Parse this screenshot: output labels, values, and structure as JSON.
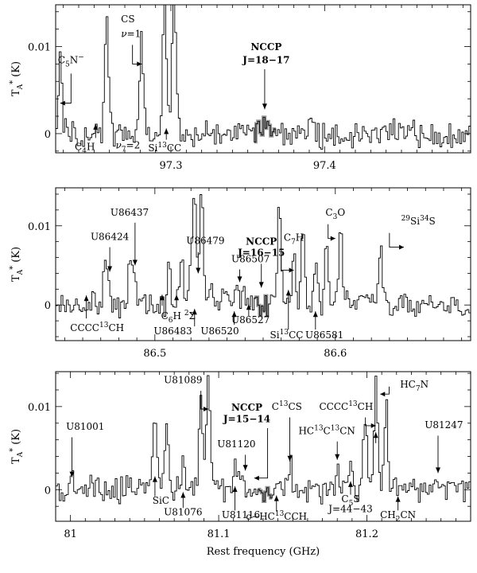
{
  "chart_data": [
    {
      "type": "line",
      "title": "",
      "xlabel": "",
      "ylabel": "T_A* (K)",
      "xlim": [
        97.225,
        97.495
      ],
      "ylim": [
        -0.0022,
        0.0148
      ],
      "xticks_major": [
        97.3,
        97.4
      ],
      "xticks_major_labels": [
        "97.3",
        "97.4"
      ],
      "yticks_major": [
        0,
        0.01
      ],
      "yticks_major_labels": [
        "0",
        "0.01"
      ],
      "features": [
        {
          "x": 97.228,
          "peak": 0.0085
        },
        {
          "x": 97.258,
          "peak": 0.0135
        },
        {
          "x": 97.281,
          "peak": 0.0115
        },
        {
          "x": 97.296,
          "peak": 0.016
        },
        {
          "x": 97.302,
          "peak": 0.016
        },
        {
          "x": 97.361,
          "peak": 0.0022
        },
        {
          "x": 97.392,
          "peak": 0.0022
        }
      ],
      "highlight_segments": [
        {
          "x0": 97.354,
          "x1": 97.368
        }
      ],
      "labels": [
        {
          "text": "C5N⁻",
          "fs": [
            {
              "t": "C"
            },
            {
              "t": "5",
              "s": "sub"
            },
            {
              "t": "N"
            },
            {
              "t": "−",
              "s": "sup"
            }
          ],
          "x": 97.235,
          "y": 0.0081
        },
        {
          "text": "CS",
          "fs": [
            {
              "t": "CS"
            }
          ],
          "x": 97.272,
          "y": 0.0128
        },
        {
          "text": "ν=1",
          "fs": [
            {
              "t": "ν",
              "s": "it"
            },
            {
              "t": "=1"
            }
          ],
          "x": 97.274,
          "y": 0.0111
        },
        {
          "text": "NCCP",
          "fs": [
            {
              "t": "NCCP"
            }
          ],
          "x": 97.362,
          "y": 0.0096,
          "bold": true
        },
        {
          "text": "J=18−17",
          "fs": [
            {
              "t": "J=18−17"
            }
          ],
          "x": 97.362,
          "y": 0.0081,
          "bold": true
        },
        {
          "text": "C4H",
          "fs": [
            {
              "t": "C"
            },
            {
              "t": "4",
              "s": "sub"
            },
            {
              "t": "H"
            }
          ],
          "x": 97.244,
          "y": -0.0019
        },
        {
          "text": "ν7=2",
          "fs": [
            {
              "t": "ν",
              "s": "it"
            },
            {
              "t": "7",
              "s": "sub"
            },
            {
              "t": "=2"
            }
          ],
          "x": 97.272,
          "y": -0.0017
        },
        {
          "text": "Si13CC",
          "fs": [
            {
              "t": "Si"
            },
            {
              "t": "13",
              "s": "sup"
            },
            {
              "t": "CC"
            }
          ],
          "x": 97.296,
          "y": -0.002
        }
      ],
      "arrows": [
        {
          "x": 97.235,
          "y0": 0.0069,
          "y1": 0.0035,
          "kink_x": 97.228
        },
        {
          "x": 97.275,
          "y0": 0.0102,
          "y1": 0.008,
          "kink_x": 97.281
        },
        {
          "x": 97.361,
          "y0": 0.0074,
          "y1": 0.0028
        },
        {
          "x": 97.251,
          "y0": -0.0005,
          "y1": 0.0011
        },
        {
          "x": 97.297,
          "y0": -0.0007,
          "y1": 0.0006
        }
      ]
    },
    {
      "type": "line",
      "title": "",
      "xlabel": "",
      "ylabel": "T_A* (K)",
      "xlim": [
        86.445,
        86.675
      ],
      "ylim": [
        -0.0045,
        0.0148
      ],
      "xticks_major": [
        86.5,
        86.6
      ],
      "xticks_major_labels": [
        "86.5",
        "86.6"
      ],
      "yticks_major": [
        0,
        0.01
      ],
      "yticks_major_labels": [
        "0",
        "0.01"
      ],
      "features": [
        {
          "x": 86.474,
          "peak": 0.0042
        },
        {
          "x": 86.488,
          "peak": 0.005
        },
        {
          "x": 86.472,
          "peak": 0.004
        },
        {
          "x": 86.486,
          "peak": 0.0045
        },
        {
          "x": 86.508,
          "peak": 0.0045
        },
        {
          "x": 86.515,
          "peak": 0.0065
        },
        {
          "x": 86.52,
          "peak": 0.0055
        },
        {
          "x": 86.522,
          "peak": 0.0135
        },
        {
          "x": 86.526,
          "peak": 0.0145
        },
        {
          "x": 86.531,
          "peak": 0.0025
        },
        {
          "x": 86.539,
          "peak": 0.0025
        },
        {
          "x": 86.545,
          "peak": 0.0015
        },
        {
          "x": 86.55,
          "peak": 0.0015
        },
        {
          "x": 86.556,
          "peak": 0.0015
        },
        {
          "x": 86.569,
          "peak": 0.0125
        },
        {
          "x": 86.577,
          "peak": 0.0065
        },
        {
          "x": 86.582,
          "peak": 0.0085
        },
        {
          "x": 86.589,
          "peak": 0.0055
        },
        {
          "x": 86.595,
          "peak": 0.0085
        },
        {
          "x": 86.603,
          "peak": 0.01
        },
        {
          "x": 86.625,
          "peak": 0.007
        }
      ],
      "highlight_segments": [
        {
          "x0": 86.555,
          "x1": 86.563
        }
      ],
      "labels": [
        {
          "text": "U86437",
          "fs": [
            {
              "t": "U86437"
            }
          ],
          "x": 86.486,
          "y": 0.0113
        },
        {
          "text": "U86424",
          "fs": [
            {
              "t": "U86424"
            }
          ],
          "x": 86.475,
          "y": 0.0082
        },
        {
          "text": "U86479",
          "fs": [
            {
              "t": "U86479"
            }
          ],
          "x": 86.528,
          "y": 0.0077
        },
        {
          "text": "U86507",
          "fs": [
            {
              "t": "U86507"
            }
          ],
          "x": 86.553,
          "y": 0.0054
        },
        {
          "text": "NCCP",
          "fs": [
            {
              "t": "NCCP"
            }
          ],
          "x": 86.559,
          "y": 0.0076,
          "bold": true
        },
        {
          "text": "J=16−15",
          "fs": [
            {
              "t": "J=16−15"
            }
          ],
          "x": 86.559,
          "y": 0.0062,
          "bold": true
        },
        {
          "text": "C7H",
          "fs": [
            {
              "t": "C"
            },
            {
              "t": "7",
              "s": "sub"
            },
            {
              "t": "H"
            }
          ],
          "x": 86.577,
          "y": 0.0081
        },
        {
          "text": "C3O",
          "fs": [
            {
              "t": "C"
            },
            {
              "t": "3",
              "s": "sub"
            },
            {
              "t": "O"
            }
          ],
          "x": 86.6,
          "y": 0.0113
        },
        {
          "text": "29Si34S",
          "fs": [
            {
              "t": "29",
              "s": "sup"
            },
            {
              "t": "Si"
            },
            {
              "t": "34",
              "s": "sup"
            },
            {
              "t": "S"
            }
          ],
          "x": 86.646,
          "y": 0.0102
        },
        {
          "text": "CCCC13CH",
          "fs": [
            {
              "t": "CCCC"
            },
            {
              "t": "13",
              "s": "sup"
            },
            {
              "t": "CH"
            }
          ],
          "x": 86.468,
          "y": -0.0033
        },
        {
          "text": "C6H 2Σ",
          "fs": [
            {
              "t": "C"
            },
            {
              "t": "6",
              "s": "sub"
            },
            {
              "t": "H  "
            },
            {
              "t": "2",
              "s": "sup"
            },
            {
              "t": "Σ"
            }
          ],
          "x": 86.513,
          "y": -0.0018
        },
        {
          "text": "U86483",
          "fs": [
            {
              "t": "U86483"
            }
          ],
          "x": 86.51,
          "y": -0.0037
        },
        {
          "text": "U86520",
          "fs": [
            {
              "t": "U86520"
            }
          ],
          "x": 86.536,
          "y": -0.0037
        },
        {
          "text": "U86527",
          "fs": [
            {
              "t": "U86527"
            }
          ],
          "x": 86.553,
          "y": -0.0023
        },
        {
          "text": "Si13CC",
          "fs": [
            {
              "t": "Si"
            },
            {
              "t": "13",
              "s": "sup"
            },
            {
              "t": "CC"
            }
          ],
          "x": 86.573,
          "y": -0.0042
        },
        {
          "text": "U86581",
          "fs": [
            {
              "t": "U86581"
            }
          ],
          "x": 86.594,
          "y": -0.0042
        }
      ],
      "arrows": [
        {
          "x": 86.489,
          "y0": 0.0104,
          "y1": 0.005
        },
        {
          "x": 86.475,
          "y0": 0.0073,
          "y1": 0.0042
        },
        {
          "x": 86.524,
          "y0": 0.0067,
          "y1": 0.004
        },
        {
          "x": 86.547,
          "y0": 0.0045,
          "y1": 0.0029
        },
        {
          "x": 86.559,
          "y0": 0.0052,
          "y1": 0.0022
        },
        {
          "x": 86.57,
          "y0": 0.0067,
          "y1": 0.0044,
          "kink_x": 86.577
        },
        {
          "x": 86.596,
          "y0": 0.0102,
          "y1": 0.0084,
          "kink_x": 86.6
        },
        {
          "x": 86.63,
          "y0": 0.0091,
          "y1": 0.0073,
          "kink_x": 86.638
        },
        {
          "x": 86.462,
          "y0": -0.0017,
          "y1": 0.0012
        },
        {
          "x": 86.504,
          "y0": -0.0001,
          "y1": 0.0013
        },
        {
          "x": 86.512,
          "y0": -0.0001,
          "y1": 0.0013
        },
        {
          "x": 86.522,
          "y0": -0.0027,
          "y1": -0.0005
        },
        {
          "x": 86.544,
          "y0": -0.0025,
          "y1": -0.0008
        },
        {
          "x": 86.552,
          "y0": -0.0014,
          "y1": 0.0001
        },
        {
          "x": 86.574,
          "y0": -0.0031,
          "y1": 0.0019
        },
        {
          "x": 86.589,
          "y0": -0.0031,
          "y1": -0.0008
        }
      ]
    },
    {
      "type": "line",
      "title": "",
      "xlabel": "Rest frequency (GHz)",
      "ylabel": "T_A* (K)",
      "xlim": [
        80.99,
        81.27
      ],
      "ylim": [
        -0.0038,
        0.0142
      ],
      "xticks_major": [
        81,
        81.1,
        81.2
      ],
      "xticks_major_labels": [
        "81",
        "81.1",
        "81.2"
      ],
      "yticks_major": [
        0,
        0.01
      ],
      "yticks_major_labels": [
        "0",
        "0.01"
      ],
      "features": [
        {
          "x": 81.001,
          "peak": 0.0013
        },
        {
          "x": 81.057,
          "peak": 0.0093
        },
        {
          "x": 81.065,
          "peak": 0.0085
        },
        {
          "x": 81.076,
          "peak": 0.003
        },
        {
          "x": 81.088,
          "peak": 0.0125
        },
        {
          "x": 81.093,
          "peak": 0.0125
        },
        {
          "x": 81.111,
          "peak": 0.0022
        },
        {
          "x": 81.116,
          "peak": 0.0028
        },
        {
          "x": 81.148,
          "peak": 0.0032
        },
        {
          "x": 81.18,
          "peak": 0.0035
        },
        {
          "x": 81.189,
          "peak": 0.003
        },
        {
          "x": 81.199,
          "peak": 0.009
        },
        {
          "x": 81.206,
          "peak": 0.012
        },
        {
          "x": 81.213,
          "peak": 0.0105
        },
        {
          "x": 81.248,
          "peak": 0.0018
        }
      ],
      "highlight_segments": [
        {
          "x0": 81.126,
          "x1": 81.136
        }
      ],
      "labels": [
        {
          "text": "U81089",
          "fs": [
            {
              "t": "U81089"
            }
          ],
          "x": 81.076,
          "y": 0.0128
        },
        {
          "text": "U81001",
          "fs": [
            {
              "t": "U81001"
            }
          ],
          "x": 81.01,
          "y": 0.0072
        },
        {
          "text": "NCCP",
          "fs": [
            {
              "t": "NCCP"
            }
          ],
          "x": 81.119,
          "y": 0.0095,
          "bold": true
        },
        {
          "text": "J=15−14",
          "fs": [
            {
              "t": "J=15−14"
            }
          ],
          "x": 81.119,
          "y": 0.0081,
          "bold": true
        },
        {
          "text": "C13CS",
          "fs": [
            {
              "t": "C"
            },
            {
              "t": "13",
              "s": "sup"
            },
            {
              "t": "CS"
            }
          ],
          "x": 81.146,
          "y": 0.0096
        },
        {
          "text": "U81120",
          "fs": [
            {
              "t": "U81120"
            }
          ],
          "x": 81.112,
          "y": 0.0051
        },
        {
          "text": "CCCC13CH",
          "fs": [
            {
              "t": "CCCC"
            },
            {
              "t": "13",
              "s": "sup"
            },
            {
              "t": "CH"
            }
          ],
          "x": 81.186,
          "y": 0.0096
        },
        {
          "text": "HC7N",
          "fs": [
            {
              "t": "HC"
            },
            {
              "t": "7",
              "s": "sub"
            },
            {
              "t": "N"
            }
          ],
          "x": 81.232,
          "y": 0.0123
        },
        {
          "text": "HC13C13CN",
          "fs": [
            {
              "t": "HC"
            },
            {
              "t": "13",
              "s": "sup"
            },
            {
              "t": "C"
            },
            {
              "t": "13",
              "s": "sup"
            },
            {
              "t": "CN"
            }
          ],
          "x": 81.173,
          "y": 0.0067
        },
        {
          "text": "U81247",
          "fs": [
            {
              "t": "U81247"
            }
          ],
          "x": 81.252,
          "y": 0.0074
        },
        {
          "text": "SiC",
          "fs": [
            {
              "t": "SiC"
            }
          ],
          "x": 81.061,
          "y": -0.0017
        },
        {
          "text": "U81076",
          "fs": [
            {
              "t": "U81076"
            }
          ],
          "x": 81.076,
          "y": -0.0031
        },
        {
          "text": "U81116",
          "fs": [
            {
              "t": "U81116"
            }
          ],
          "x": 81.115,
          "y": -0.0034
        },
        {
          "text": "c−HC13CCH",
          "fs": [
            {
              "t": "c−HC"
            },
            {
              "t": "13",
              "s": "sup"
            },
            {
              "t": "CCH"
            }
          ],
          "x": 81.139,
          "y": -0.0036
        },
        {
          "text": "C5S",
          "fs": [
            {
              "t": "C"
            },
            {
              "t": "5",
              "s": "sub"
            },
            {
              "t": "S"
            }
          ],
          "x": 81.189,
          "y": -0.0015
        },
        {
          "text": "J=44−43",
          "fs": [
            {
              "t": "J=44−43"
            }
          ],
          "x": 81.189,
          "y": -0.0027
        },
        {
          "text": "CH2CN",
          "fs": [
            {
              "t": "CH"
            },
            {
              "t": "2",
              "s": "sub"
            },
            {
              "t": "CN"
            }
          ],
          "x": 81.221,
          "y": -0.0034
        }
      ],
      "arrows": [
        {
          "x": 81.001,
          "y0": 0.0063,
          "y1": 0.0015
        },
        {
          "x": 81.088,
          "y0": 0.0119,
          "y1": 0.0097,
          "kink_x": 81.093
        },
        {
          "x": 81.133,
          "y0": 0.0074,
          "y1": 0.0014,
          "kink_x": 81.124
        },
        {
          "x": 81.148,
          "y0": 0.0087,
          "y1": 0.0034
        },
        {
          "x": 81.118,
          "y0": 0.0042,
          "y1": 0.0023
        },
        {
          "x": 81.199,
          "y0": 0.0087,
          "y1": 0.0077,
          "kink_x": 81.206
        },
        {
          "x": 81.215,
          "y0": 0.0124,
          "y1": 0.0115,
          "kink_x": 81.209
        },
        {
          "x": 81.18,
          "y0": 0.0058,
          "y1": 0.0036
        },
        {
          "x": 81.248,
          "y0": 0.0065,
          "y1": 0.002
        },
        {
          "x": 81.057,
          "y0": -0.0008,
          "y1": 0.0016
        },
        {
          "x": 81.076,
          "y0": -0.0022,
          "y1": -0.0003
        },
        {
          "x": 81.111,
          "y0": -0.0025,
          "y1": 0.0004
        },
        {
          "x": 81.139,
          "y0": -0.0026,
          "y1": -0.0007
        },
        {
          "x": 81.189,
          "y0": -0.0006,
          "y1": 0.001
        },
        {
          "x": 81.206,
          "y0": 0.0056,
          "y1": 0.0069
        },
        {
          "x": 81.221,
          "y0": -0.0025,
          "y1": -0.0008
        }
      ]
    }
  ]
}
